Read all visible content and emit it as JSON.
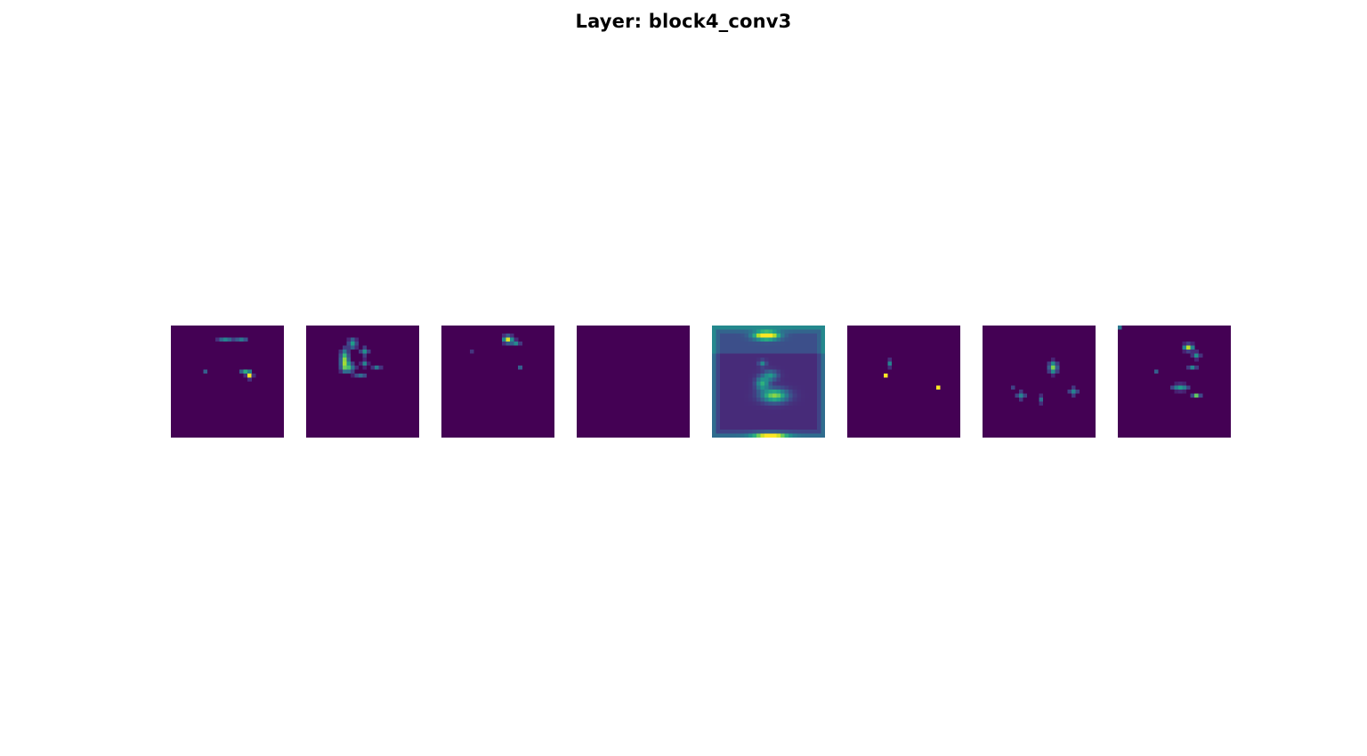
{
  "figure": {
    "title": "Layer: block4_conv3",
    "colormap": "viridis",
    "background_color": "#440154",
    "grid_size": 28,
    "feature_maps": [
      {
        "id": "fmap-1",
        "blobs": [
          [
            13,
            3,
            0.45,
            1.8,
            0.6
          ],
          [
            17,
            3,
            0.4,
            1.5,
            0.5
          ],
          [
            18,
            11,
            0.6,
            1.2,
            0.5
          ],
          [
            19,
            12,
            1.0,
            0.7,
            0.7
          ],
          [
            8,
            11,
            0.3,
            0.6,
            0.4
          ]
        ]
      },
      {
        "id": "fmap-2",
        "blobs": [
          [
            11,
            4,
            0.55,
            1.0,
            1.3
          ],
          [
            14,
            6,
            0.5,
            1.0,
            1.0
          ],
          [
            9,
            8,
            0.8,
            1.0,
            2.4
          ],
          [
            10,
            10,
            0.55,
            1.6,
            1.2
          ],
          [
            14,
            9,
            0.45,
            0.8,
            0.8
          ],
          [
            17,
            10,
            0.4,
            1.0,
            0.5
          ],
          [
            13,
            12,
            0.35,
            1.5,
            0.6
          ]
        ]
      },
      {
        "id": "fmap-3",
        "blobs": [
          [
            16,
            3,
            0.95,
            1.2,
            0.9
          ],
          [
            18,
            4,
            0.45,
            1.0,
            0.7
          ],
          [
            19,
            10,
            0.3,
            0.8,
            0.4
          ],
          [
            7,
            6,
            0.15,
            0.6,
            0.4
          ]
        ]
      },
      {
        "id": "fmap-4",
        "blobs": []
      },
      {
        "id": "fmap-5",
        "frame": true,
        "blobs": [
          [
            13,
            2,
            1.0,
            3.0,
            1.0
          ],
          [
            15,
            17,
            0.7,
            3.2,
            1.6
          ],
          [
            12,
            14,
            0.5,
            1.6,
            1.6
          ],
          [
            14,
            12,
            0.4,
            1.8,
            1.2
          ],
          [
            12,
            9,
            0.35,
            0.9,
            0.8
          ],
          [
            14,
            27,
            0.75,
            4.0,
            0.7
          ]
        ]
      },
      {
        "id": "fmap-6",
        "blobs": [
          [
            10,
            9,
            0.45,
            0.6,
            0.9
          ],
          [
            9,
            12,
            1.0,
            0.5,
            0.5
          ],
          [
            22,
            15,
            1.0,
            0.5,
            0.5
          ]
        ]
      },
      {
        "id": "fmap-7",
        "blobs": [
          [
            17,
            10,
            0.8,
            1.0,
            1.4
          ],
          [
            9,
            17,
            0.45,
            1.1,
            1.0
          ],
          [
            14,
            18,
            0.35,
            0.8,
            1.0
          ],
          [
            22,
            16,
            0.45,
            1.1,
            1.0
          ],
          [
            7,
            15,
            0.2,
            0.6,
            0.6
          ]
        ]
      },
      {
        "id": "fmap-8",
        "blobs": [
          [
            17,
            5,
            0.9,
            1.2,
            0.8
          ],
          [
            19,
            7,
            0.5,
            0.9,
            0.8
          ],
          [
            18,
            10,
            0.45,
            1.0,
            0.5
          ],
          [
            15,
            15,
            0.55,
            2.0,
            0.8
          ],
          [
            19,
            17,
            0.75,
            0.9,
            0.6
          ],
          [
            9,
            11,
            0.3,
            0.5,
            0.8
          ],
          [
            0,
            0,
            0.4,
            0.6,
            0.6
          ]
        ]
      }
    ]
  }
}
